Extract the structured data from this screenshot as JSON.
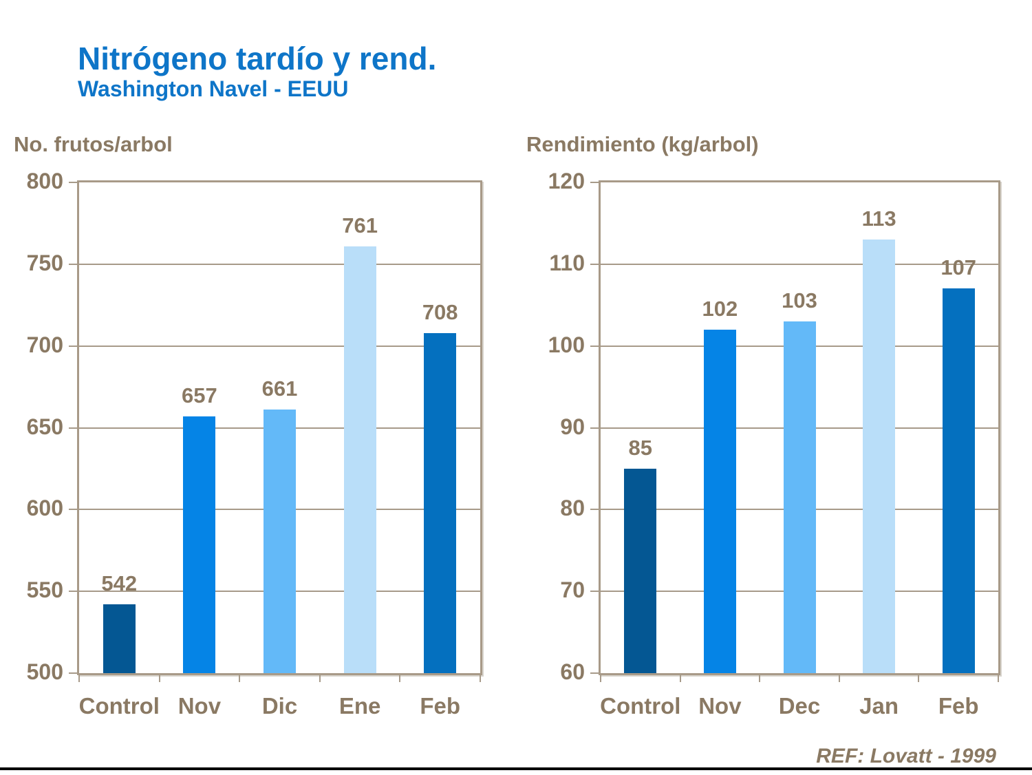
{
  "slide": {
    "title": "Nitrógeno tardío y rend.",
    "subtitle": "Washington Navel - EEUU",
    "reference": "REF: Lovatt - 1999"
  },
  "colors": {
    "title_blue": "#0e75c8",
    "text_brown": "#8a7963",
    "axis_line": "#a89a88",
    "gridline": "#a79a89",
    "bar_colors": [
      "#045793",
      "#0584e6",
      "#63b9f8",
      "#b9def9",
      "#0470bf"
    ]
  },
  "chart_data": [
    {
      "type": "bar",
      "title": "No. frutos/arbol",
      "categories": [
        "Control",
        "Nov",
        "Dic",
        "Ene",
        "Feb"
      ],
      "values": [
        542,
        657,
        661,
        761,
        708
      ],
      "data_labels": [
        "542",
        "657",
        "661",
        "761",
        "708"
      ],
      "ylim": [
        500,
        800
      ],
      "ytick_step": 50,
      "ytick_labels": [
        "800",
        "750",
        "700",
        "650",
        "600",
        "550",
        "500"
      ],
      "grid": true,
      "legend": "none"
    },
    {
      "type": "bar",
      "title": "Rendimiento (kg/arbol)",
      "categories": [
        "Control",
        "Nov",
        "Dec",
        "Jan",
        "Feb"
      ],
      "values": [
        85,
        102,
        103,
        113,
        107
      ],
      "data_labels": [
        "85",
        "102",
        "103",
        "113",
        "107"
      ],
      "ylim": [
        60,
        120
      ],
      "ytick_step": 10,
      "ytick_labels": [
        "120",
        "110",
        "100",
        "90",
        "80",
        "70",
        "60"
      ],
      "grid": true,
      "legend": "none"
    }
  ]
}
